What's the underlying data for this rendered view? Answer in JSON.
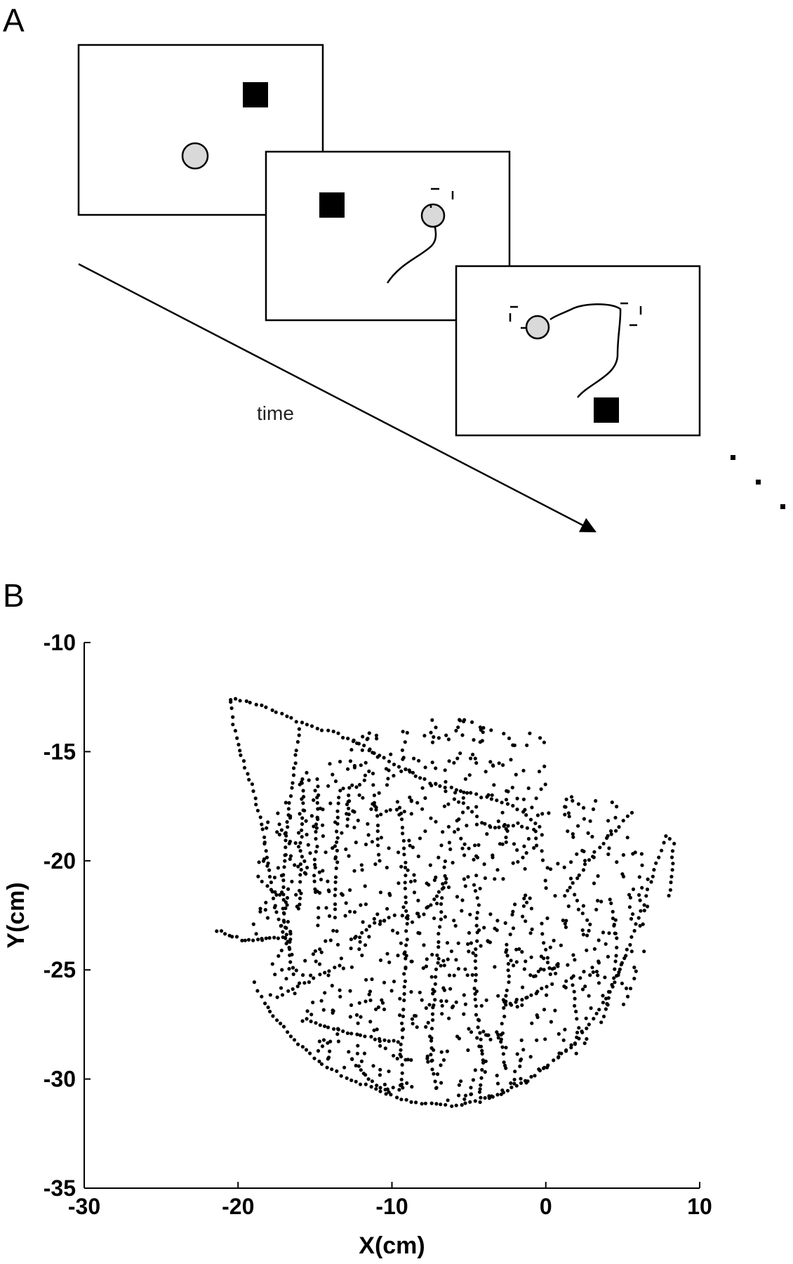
{
  "panel_a": {
    "label": "A",
    "time_label": "time",
    "colors": {
      "cursor": "#d9d9d9",
      "target": "#000000",
      "frame": "#000000"
    }
  },
  "panel_b": {
    "label": "B"
  },
  "chart_data": {
    "type": "scatter",
    "title": "",
    "xlabel": "X(cm)",
    "ylabel": "Y(cm)",
    "xlim": [
      -30,
      10
    ],
    "ylim": [
      -35,
      -10
    ],
    "xticks": [
      -30,
      -20,
      -10,
      0,
      10
    ],
    "yticks": [
      -10,
      -15,
      -20,
      -25,
      -30,
      -35
    ],
    "grid": false,
    "marker_color": "#000000",
    "strokes": [
      [
        [
          -20.5,
          -12.7
        ],
        [
          -20.3,
          -13.8
        ],
        [
          -19.8,
          -15.2
        ],
        [
          -19.0,
          -16.8
        ],
        [
          -18.4,
          -18.6
        ],
        [
          -18.0,
          -20.4
        ],
        [
          -17.6,
          -22.0
        ],
        [
          -17.1,
          -23.3
        ],
        [
          -16.5,
          -24.3
        ]
      ],
      [
        [
          -20.5,
          -12.6
        ],
        [
          -19.5,
          -12.7
        ],
        [
          -18.5,
          -12.9
        ],
        [
          -17.5,
          -13.2
        ],
        [
          -16.5,
          -13.5
        ],
        [
          -15.5,
          -13.8
        ],
        [
          -14.5,
          -14.0
        ],
        [
          -13.5,
          -14.2
        ],
        [
          -12.5,
          -14.5
        ],
        [
          -11.5,
          -14.9
        ],
        [
          -10.5,
          -15.3
        ],
        [
          -9.5,
          -15.7
        ],
        [
          -8.5,
          -16.1
        ],
        [
          -7.5,
          -16.4
        ],
        [
          -6.5,
          -16.6
        ],
        [
          -5.5,
          -16.8
        ],
        [
          -4.5,
          -17.0
        ],
        [
          -3.5,
          -17.2
        ],
        [
          -2.5,
          -17.4
        ],
        [
          -1.5,
          -17.7
        ],
        [
          -0.7,
          -18.3
        ],
        [
          -0.6,
          -19.3
        ]
      ],
      [
        [
          -21.4,
          -23.2
        ],
        [
          -20.6,
          -23.4
        ],
        [
          -19.8,
          -23.6
        ],
        [
          -19.0,
          -23.7
        ],
        [
          -18.2,
          -23.6
        ],
        [
          -17.4,
          -23.5
        ],
        [
          -16.6,
          -23.6
        ]
      ],
      [
        [
          -16.0,
          -14.0
        ],
        [
          -16.3,
          -15.5
        ],
        [
          -16.6,
          -17.0
        ],
        [
          -16.8,
          -18.5
        ],
        [
          -17.0,
          -20.0
        ],
        [
          -17.1,
          -21.5
        ],
        [
          -17.0,
          -22.8
        ],
        [
          -16.7,
          -24.0
        ],
        [
          -16.4,
          -25.2
        ]
      ],
      [
        [
          -15.8,
          -16.2
        ],
        [
          -15.8,
          -17.4
        ],
        [
          -15.9,
          -18.6
        ],
        [
          -15.9,
          -19.8
        ],
        [
          -16.0,
          -21.0
        ],
        [
          -16.0,
          -22.0
        ]
      ],
      [
        [
          -14.8,
          -16.3
        ],
        [
          -14.8,
          -17.3
        ],
        [
          -14.9,
          -18.3
        ],
        [
          -14.9,
          -19.3
        ],
        [
          -15.0,
          -20.3
        ],
        [
          -15.0,
          -21.3
        ]
      ],
      [
        [
          -13.4,
          -16.8
        ],
        [
          -13.5,
          -18.0
        ],
        [
          -13.6,
          -19.2
        ],
        [
          -13.6,
          -20.4
        ],
        [
          -13.7,
          -21.6
        ],
        [
          -13.7,
          -22.6
        ]
      ],
      [
        [
          -12.8,
          -16.7
        ],
        [
          -12.8,
          -17.6
        ],
        [
          -12.9,
          -18.4
        ]
      ],
      [
        [
          -11.2,
          -17.0
        ],
        [
          -11.0,
          -18.0
        ],
        [
          -10.9,
          -19.0
        ],
        [
          -10.8,
          -20.0
        ]
      ],
      [
        [
          -18.9,
          -25.6
        ],
        [
          -18.3,
          -26.5
        ],
        [
          -17.5,
          -27.3
        ],
        [
          -16.6,
          -28.0
        ],
        [
          -15.6,
          -28.7
        ],
        [
          -14.5,
          -29.3
        ],
        [
          -13.3,
          -29.8
        ],
        [
          -12.0,
          -30.2
        ],
        [
          -10.7,
          -30.6
        ],
        [
          -9.4,
          -30.9
        ],
        [
          -8.1,
          -31.1
        ],
        [
          -6.8,
          -31.2
        ],
        [
          -5.5,
          -31.2
        ],
        [
          -4.3,
          -31.0
        ],
        [
          -3.1,
          -30.7
        ],
        [
          -1.9,
          -30.3
        ],
        [
          -0.7,
          -29.8
        ],
        [
          0.5,
          -29.2
        ],
        [
          1.6,
          -28.5
        ],
        [
          2.6,
          -27.7
        ],
        [
          3.5,
          -26.8
        ],
        [
          4.3,
          -25.8
        ],
        [
          5.0,
          -24.7
        ],
        [
          5.6,
          -23.5
        ],
        [
          6.2,
          -22.3
        ],
        [
          6.8,
          -21.0
        ],
        [
          7.3,
          -19.8
        ],
        [
          7.8,
          -18.9
        ],
        [
          8.3,
          -19.2
        ],
        [
          8.2,
          -20.4
        ],
        [
          8.0,
          -21.6
        ]
      ],
      [
        [
          -6.6,
          -17.5
        ],
        [
          -6.0,
          -17.2
        ],
        [
          -5.4,
          -17.4
        ],
        [
          -4.8,
          -17.8
        ],
        [
          -4.2,
          -18.2
        ],
        [
          -3.6,
          -18.4
        ],
        [
          -3.0,
          -18.5
        ],
        [
          -2.4,
          -18.4
        ],
        [
          -1.8,
          -18.3
        ],
        [
          -1.2,
          -18.5
        ]
      ],
      [
        [
          -9.4,
          -17.8
        ],
        [
          -9.2,
          -19.4
        ],
        [
          -9.1,
          -21.0
        ],
        [
          -9.0,
          -22.6
        ],
        [
          -9.1,
          -24.2
        ],
        [
          -9.2,
          -25.8
        ],
        [
          -9.3,
          -27.4
        ],
        [
          -9.4,
          -29.0
        ],
        [
          -9.3,
          -30.4
        ]
      ],
      [
        [
          -6.5,
          -20.0
        ],
        [
          -6.8,
          -22.0
        ],
        [
          -7.0,
          -24.0
        ],
        [
          -7.2,
          -26.0
        ],
        [
          -7.5,
          -28.0
        ],
        [
          -7.4,
          -29.5
        ],
        [
          -7.1,
          -30.4
        ]
      ],
      [
        [
          -4.4,
          -22.0
        ],
        [
          -4.5,
          -24.0
        ],
        [
          -4.6,
          -25.8
        ],
        [
          -4.4,
          -27.6
        ],
        [
          -4.1,
          -29.2
        ],
        [
          -4.3,
          -30.6
        ]
      ],
      [
        [
          -2.6,
          -23.8
        ],
        [
          -2.4,
          -25.3
        ],
        [
          -2.7,
          -26.8
        ],
        [
          -2.9,
          -28.2
        ],
        [
          -2.6,
          -29.5
        ]
      ],
      [
        [
          -15.5,
          -27.3
        ],
        [
          -14.4,
          -27.6
        ],
        [
          -13.2,
          -27.8
        ],
        [
          -12.0,
          -28.0
        ],
        [
          -10.8,
          -28.2
        ],
        [
          -9.6,
          -28.3
        ]
      ],
      [
        [
          -12.6,
          -29.1
        ],
        [
          -11.8,
          -29.8
        ],
        [
          -11.0,
          -30.3
        ],
        [
          -10.2,
          -30.6
        ]
      ],
      [
        [
          1.2,
          -21.6
        ],
        [
          1.8,
          -21.0
        ],
        [
          2.4,
          -20.4
        ],
        [
          3.2,
          -19.6
        ],
        [
          4.0,
          -19.0
        ],
        [
          4.8,
          -18.4
        ],
        [
          5.6,
          -17.8
        ]
      ],
      [
        [
          4.3,
          -22.0
        ],
        [
          4.6,
          -23.6
        ],
        [
          4.5,
          -25.0
        ],
        [
          4.1,
          -26.3
        ],
        [
          3.6,
          -27.4
        ]
      ],
      [
        [
          1.7,
          -25.4
        ],
        [
          1.9,
          -26.6
        ],
        [
          2.1,
          -27.6
        ],
        [
          1.9,
          -28.4
        ]
      ],
      [
        [
          0.4,
          -25.6
        ],
        [
          -0.6,
          -26.0
        ],
        [
          -1.6,
          -26.4
        ],
        [
          -2.6,
          -26.6
        ]
      ],
      [
        [
          -8.2,
          -22.6
        ],
        [
          -7.3,
          -21.8
        ],
        [
          -6.5,
          -21.0
        ]
      ],
      [
        [
          -12.6,
          -23.6
        ],
        [
          -11.4,
          -23.0
        ],
        [
          -10.2,
          -22.6
        ]
      ],
      [
        [
          -17.4,
          -26.2
        ],
        [
          -16.4,
          -25.9
        ],
        [
          -15.4,
          -25.5
        ],
        [
          -14.4,
          -25.1
        ],
        [
          -13.4,
          -24.8
        ]
      ],
      [
        [
          -0.2,
          -23.4
        ],
        [
          0.1,
          -24.4
        ],
        [
          0.3,
          -25.2
        ]
      ],
      [
        [
          -18.4,
          -21.0
        ],
        [
          -17.6,
          -21.4
        ],
        [
          -16.8,
          -21.7
        ]
      ]
    ],
    "scatter_region": {
      "x": [
        -19.0,
        7.0
      ],
      "y": [
        -31.0,
        -13.5
      ],
      "count": 900
    }
  }
}
